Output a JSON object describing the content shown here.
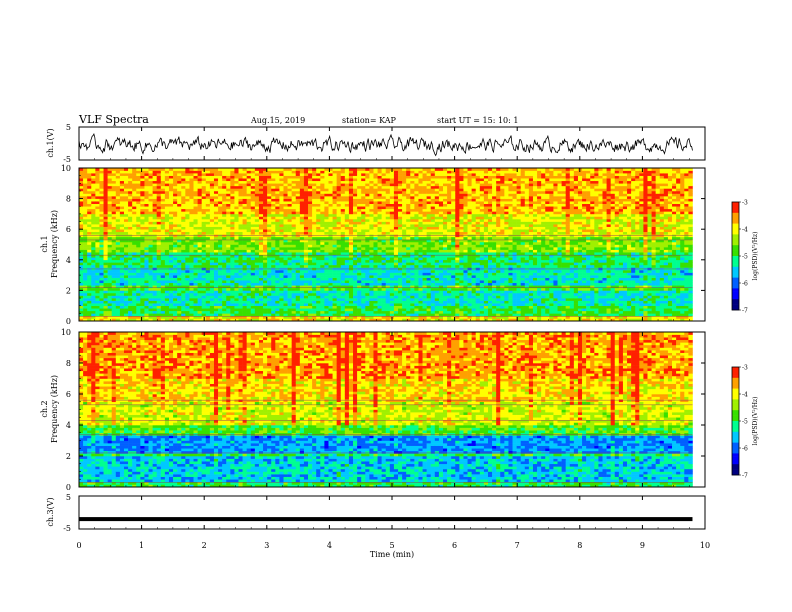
{
  "header": {
    "title": "VLF Spectra",
    "date": "Aug.15, 2019",
    "station": "station= KAP",
    "start": "start  UT =   15: 10: 1"
  },
  "colors": {
    "spectrum_scale": [
      "#000080",
      "#0000ff",
      "#0060ff",
      "#00c8ff",
      "#00ff90",
      "#38e000",
      "#a0f000",
      "#ffff00",
      "#ffa000",
      "#ff2000",
      "#ffffff"
    ],
    "trace": "#000000"
  },
  "chart_data": [
    {
      "type": "line",
      "name": "ch1-waveform",
      "ylabel": "ch.1(V)",
      "ylim": [
        -5,
        5
      ],
      "yticks": [
        "5",
        "-5"
      ],
      "xlim": [
        0,
        10
      ],
      "note_values": "noisy waveform, amplitude approx between -3 and 2 V over t=0..9.8 min"
    },
    {
      "type": "heatmap",
      "name": "ch1-spectrogram",
      "ylabel_top": "ch.1",
      "ylabel": "Frequency (kHz)",
      "ylim": [
        0,
        10
      ],
      "yticks": [
        "0",
        "2",
        "4",
        "6",
        "8",
        "10"
      ],
      "xlim": [
        0,
        10
      ],
      "data_end_x": 9.8,
      "bands": [
        {
          "from": 0.0,
          "to": 0.4,
          "level": 0.75
        },
        {
          "from": 0.4,
          "to": 1.0,
          "level": 0.5
        },
        {
          "from": 1.0,
          "to": 2.0,
          "level": 0.42
        },
        {
          "from": 2.0,
          "to": 2.3,
          "level": 0.55
        },
        {
          "from": 2.3,
          "to": 3.5,
          "level": 0.4
        },
        {
          "from": 3.5,
          "to": 4.5,
          "level": 0.48
        },
        {
          "from": 4.5,
          "to": 5.5,
          "level": 0.6
        },
        {
          "from": 5.5,
          "to": 7.0,
          "level": 0.72
        },
        {
          "from": 7.0,
          "to": 10.0,
          "level": 0.82
        }
      ],
      "colorbar": {
        "label": "log(PSD)(V²/Hz)",
        "min": -7,
        "max": -3,
        "ticks": [
          "-3",
          "-4",
          "-5",
          "-6",
          "-7"
        ]
      }
    },
    {
      "type": "heatmap",
      "name": "ch2-spectrogram",
      "ylabel_top": "ch.2",
      "ylabel": "Frequency (kHz)",
      "ylim": [
        0,
        10
      ],
      "yticks": [
        "0",
        "2",
        "4",
        "6",
        "8",
        "10"
      ],
      "xlim": [
        0,
        10
      ],
      "data_end_x": 9.8,
      "bands": [
        {
          "from": 0.0,
          "to": 0.4,
          "level": 0.5
        },
        {
          "from": 0.4,
          "to": 2.0,
          "level": 0.36
        },
        {
          "from": 2.0,
          "to": 2.2,
          "level": 0.5
        },
        {
          "from": 2.2,
          "to": 3.4,
          "level": 0.3
        },
        {
          "from": 3.4,
          "to": 4.0,
          "level": 0.55
        },
        {
          "from": 4.0,
          "to": 5.5,
          "level": 0.7
        },
        {
          "from": 5.5,
          "to": 7.0,
          "level": 0.78
        },
        {
          "from": 7.0,
          "to": 10.0,
          "level": 0.84
        }
      ],
      "colorbar": {
        "label": "log(PSD)(V²/Hz)",
        "min": -7,
        "max": -3,
        "ticks": [
          "-3",
          "-4",
          "-5",
          "-6",
          "-7"
        ]
      }
    },
    {
      "type": "line",
      "name": "ch3-waveform",
      "ylabel": "ch.3(V)",
      "ylim": [
        -5,
        5
      ],
      "yticks": [
        "5",
        "-5"
      ],
      "xlim": [
        0,
        10
      ],
      "values_constant": -2,
      "xlabel": "Time  (min)",
      "xticks": [
        "0",
        "1",
        "2",
        "3",
        "4",
        "5",
        "6",
        "7",
        "8",
        "9",
        "10"
      ]
    }
  ]
}
